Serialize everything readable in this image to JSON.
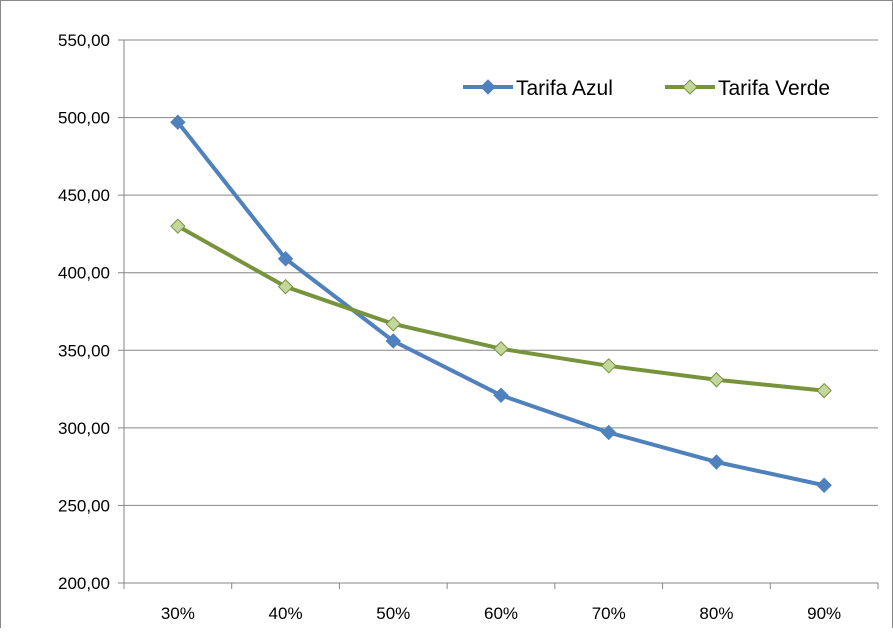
{
  "chart_data": {
    "type": "line",
    "categories": [
      "30%",
      "40%",
      "50%",
      "60%",
      "70%",
      "80%",
      "90%"
    ],
    "series": [
      {
        "name": "Tarifa Azul",
        "color": "#4F81BD",
        "marker": "diamond",
        "values": [
          497,
          409,
          356,
          321,
          297,
          278,
          263
        ]
      },
      {
        "name": "Tarifa Verde",
        "color": "#77933C",
        "marker_fill": "#C3D69B",
        "marker": "diamond",
        "values": [
          430,
          391,
          367,
          351,
          340,
          331,
          324
        ]
      }
    ],
    "y_ticks": [
      "200,00",
      "250,00",
      "300,00",
      "350,00",
      "400,00",
      "450,00",
      "500,00",
      "550,00"
    ],
    "ylim": [
      200,
      550
    ],
    "y_step": 50,
    "grid": "horizontal",
    "legend_position": "top-right",
    "title": "",
    "xlabel": "",
    "ylabel": ""
  }
}
